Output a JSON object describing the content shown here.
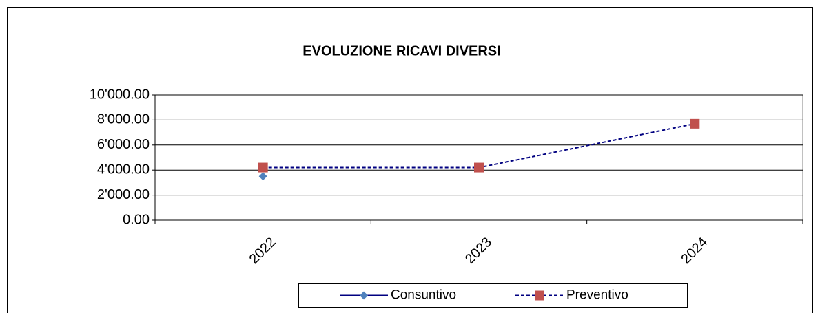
{
  "chart_data": {
    "type": "line",
    "title": "EVOLUZIONE RICAVI DIVERSI",
    "categories": [
      "2022",
      "2023",
      "2024"
    ],
    "series": [
      {
        "name": "Consuntivo",
        "color": "#4f81bd",
        "line_color": "#000080",
        "marker": "diamond",
        "dashed": false,
        "values": [
          3500,
          null,
          null
        ]
      },
      {
        "name": "Preventivo",
        "color": "#c0504d",
        "line_color": "#000080",
        "marker": "square",
        "dashed": true,
        "values": [
          4200,
          4200,
          7700
        ]
      }
    ],
    "ylim": [
      0,
      10000
    ],
    "yticks": [
      {
        "value": 0,
        "label": "0.00"
      },
      {
        "value": 2000,
        "label": "2'000.00"
      },
      {
        "value": 4000,
        "label": "4'000.00"
      },
      {
        "value": 6000,
        "label": "6'000.00"
      },
      {
        "value": 8000,
        "label": "8'000.00"
      },
      {
        "value": 10000,
        "label": "10'000.00"
      }
    ],
    "grid": true,
    "legend": "bottom"
  }
}
